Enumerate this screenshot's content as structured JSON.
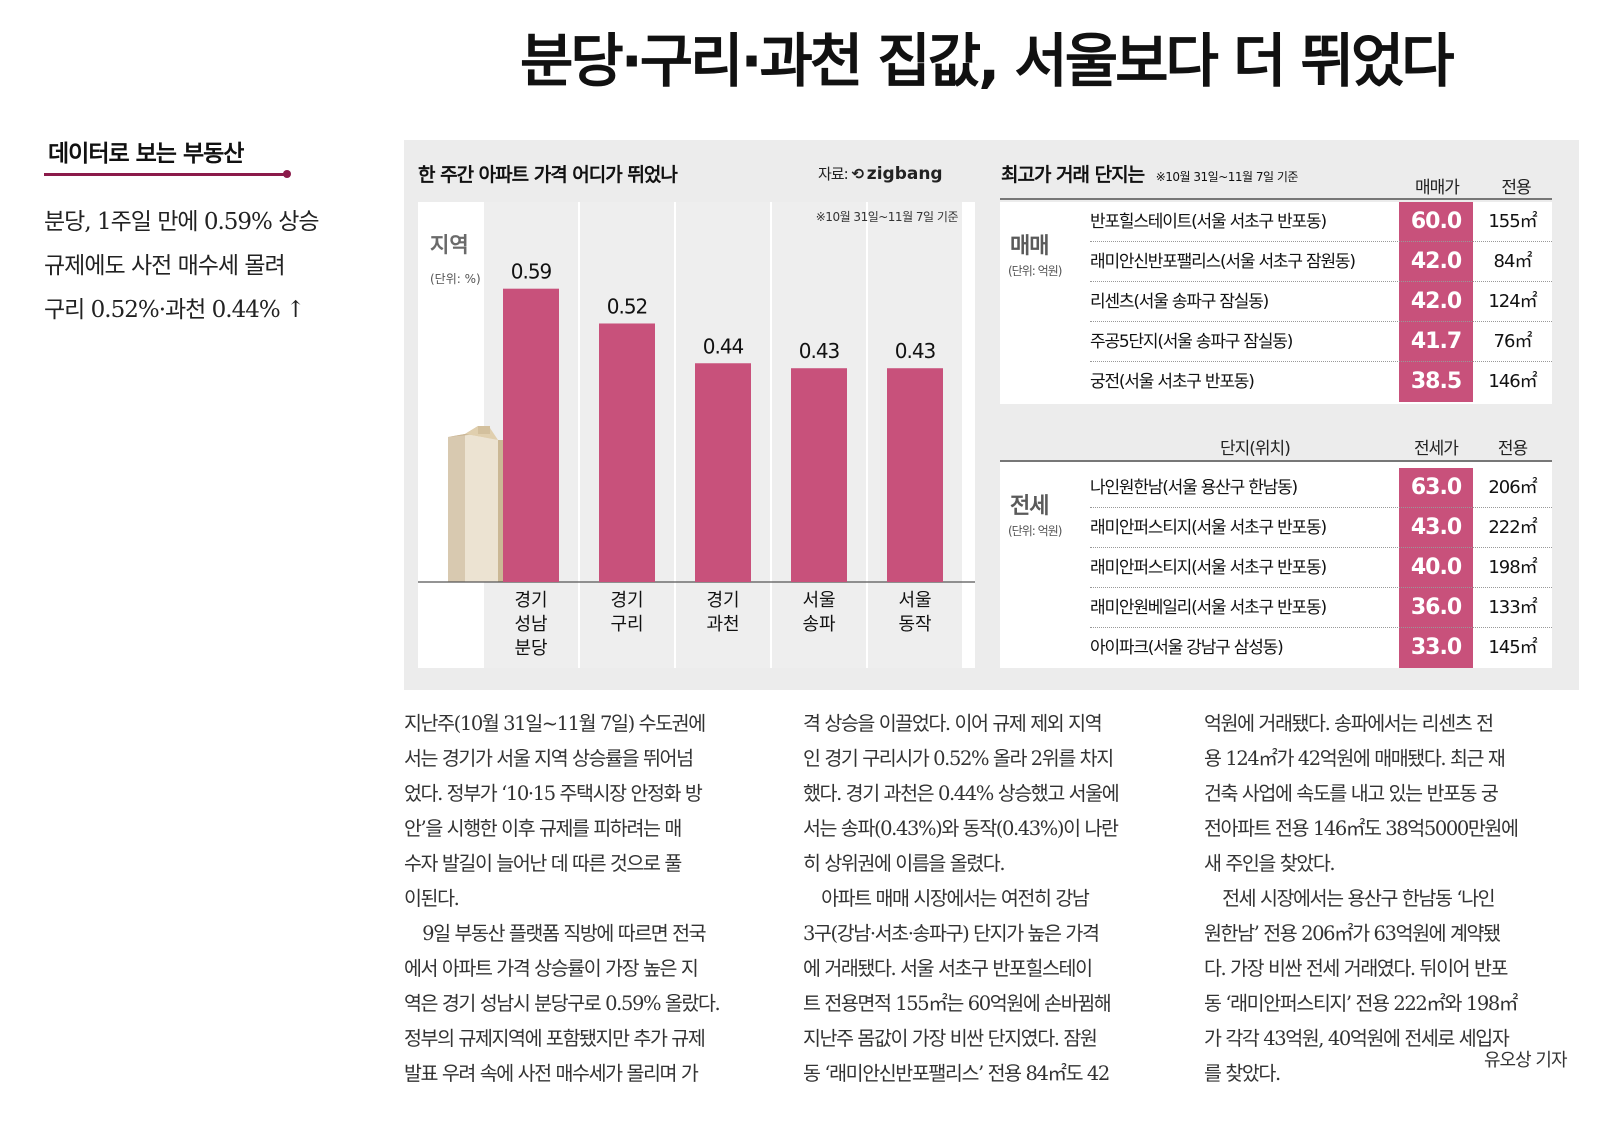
{
  "headline": "분당·구리·과천 집값, 서울보다 더 뛰었다",
  "sidebar": {
    "kicker": "데이터로 보는 부동산",
    "subhead": [
      "분당, 1주일 만에 0.59% 상승",
      "규제에도 사전 매수세 몰려",
      "구리 0.52%·과천 0.44% ↑"
    ]
  },
  "graphic": {
    "chart_title": "한 주간 아파트 가격 어디가 뛰었나",
    "source_prefix": "자료:",
    "source_name": "zigbang",
    "period_note": "※10월 31일~11월 7일 기준",
    "region_label": "지역",
    "unit_label": "(단위: %)",
    "bar_color": "#c8517b",
    "tables_title": "최고가 거래 단지는",
    "tables_note": "※10월 31일~11월 7일 기준",
    "sale": {
      "group_label": "매매",
      "unit": "(단위: 억원)",
      "price_header": "매매가",
      "area_header": "전용",
      "rows": [
        {
          "name": "반포힐스테이트(서울 서초구 반포동)",
          "price": "60.0",
          "area": "155㎡"
        },
        {
          "name": "래미안신반포팰리스(서울 서초구 잠원동)",
          "price": "42.0",
          "area": "84㎡"
        },
        {
          "name": "리센츠(서울 송파구 잠실동)",
          "price": "42.0",
          "area": "124㎡"
        },
        {
          "name": "주공5단지(서울 송파구 잠실동)",
          "price": "41.7",
          "area": "76㎡"
        },
        {
          "name": "궁전(서울 서초구 반포동)",
          "price": "38.5",
          "area": "146㎡"
        }
      ]
    },
    "lease": {
      "group_label": "전세",
      "unit": "(단위: 억원)",
      "name_header": "단지(위치)",
      "price_header": "전세가",
      "area_header": "전용",
      "rows": [
        {
          "name": "나인원한남(서울 용산구 한남동)",
          "price": "63.0",
          "area": "206㎡"
        },
        {
          "name": "래미안퍼스티지(서울 서초구 반포동)",
          "price": "43.0",
          "area": "222㎡"
        },
        {
          "name": "래미안퍼스티지(서울 서초구 반포동)",
          "price": "40.0",
          "area": "198㎡"
        },
        {
          "name": "래미안원베일리(서울 서초구 반포동)",
          "price": "36.0",
          "area": "133㎡"
        },
        {
          "name": "아이파크(서울 강남구 삼성동)",
          "price": "33.0",
          "area": "145㎡"
        }
      ]
    }
  },
  "chart_data": {
    "type": "bar",
    "categories": [
      [
        "경기",
        "성남",
        "분당"
      ],
      [
        "경기",
        "구리"
      ],
      [
        "경기",
        "과천"
      ],
      [
        "서울",
        "송파"
      ],
      [
        "서울",
        "동작"
      ]
    ],
    "values": [
      0.59,
      0.52,
      0.44,
      0.43,
      0.43
    ],
    "value_labels": [
      "0.59",
      "0.52",
      "0.44",
      "0.43",
      "0.43"
    ],
    "title": "한 주간 아파트 가격 어디가 뛰었나",
    "ylabel": "지역",
    "ylim": [
      0,
      0.7
    ],
    "grid": false
  },
  "article": {
    "col1": [
      "지난주(10월 31일~11월 7일) 수도권에",
      "서는 경기가 서울 지역 상승률을 뛰어넘",
      "었다. 정부가 ‘10·15 주택시장 안정화 방",
      "안’을 시행한 이후 규제를 피하려는 매",
      "수자 발길이 늘어난 데 따른 것으로 풀",
      "이된다.",
      "　9일 부동산 플랫폼 직방에 따르면 전국",
      "에서 아파트 가격 상승률이 가장 높은 지",
      "역은 경기 성남시 분당구로 0.59% 올랐다.",
      "정부의 규제지역에 포함됐지만 추가 규제",
      "발표 우려 속에 사전 매수세가 몰리며 가"
    ],
    "col2": [
      "격 상승을 이끌었다. 이어 규제 제외 지역",
      "인 경기 구리시가 0.52% 올라 2위를 차지",
      "했다. 경기 과천은 0.44% 상승했고 서울에",
      "서는 송파(0.43%)와 동작(0.43%)이 나란",
      "히 상위권에 이름을 올렸다.",
      "　아파트 매매 시장에서는 여전히 강남",
      "3구(강남·서초·송파구) 단지가 높은 가격",
      "에 거래됐다. 서울 서초구 반포힐스테이",
      "트 전용면적 155㎡는 60억원에 손바뀜해",
      "지난주 몸값이 가장 비싼 단지였다. 잠원",
      "동 ‘래미안신반포팰리스’ 전용 84㎡도 42"
    ],
    "col3": [
      "억원에 거래됐다. 송파에서는 리센츠 전",
      "용 124㎡가 42억원에 매매됐다. 최근 재",
      "건축 사업에 속도를 내고 있는 반포동 궁",
      "전아파트 전용 146㎡도 38억5000만원에",
      "새 주인을 찾았다.",
      "　전세 시장에서는 용산구 한남동 ‘나인",
      "원한남’ 전용 206㎡가 63억원에 계약됐",
      "다. 가장 비싼 전세 거래였다. 뒤이어 반포",
      "동 ‘래미안퍼스티지’ 전용 222㎡와 198㎡",
      "가 각각 43억원, 40억원에 전세로 세입자",
      "를 찾았다."
    ],
    "byline": "유오상 기자"
  }
}
